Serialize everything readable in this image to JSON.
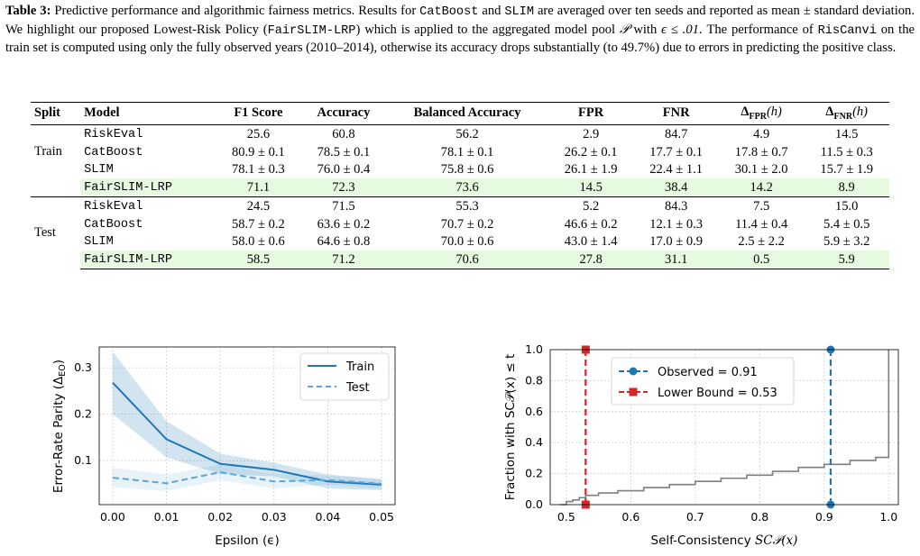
{
  "caption": {
    "label": "Table 3:",
    "p1": " Predictive performance and algorithmic fairness metrics. Results for ",
    "m1": "CatBoost",
    "p2": " and ",
    "m2": "SLIM",
    "p3": " are averaged over ten seeds and reported as mean ± standard deviation. We highlight our proposed Lowest-Risk Policy (",
    "m3": "FairSLIM-LRP",
    "p4": ") which is applied to the aggregated model pool ",
    "pool": "𝒫",
    "p5": " with ",
    "eps": "ϵ ≤ .01",
    "p6": ". The performance of ",
    "m4": "RisCanvi",
    "p7": " on the train set is computed using only the fully observed years (2010–2014), otherwise its accuracy drops substantially (to 49.7%) due to errors in predicting the positive class."
  },
  "table": {
    "headers": {
      "split": "Split",
      "model": "Model",
      "f1": "F1 Score",
      "acc": "Accuracy",
      "bacc": "Balanced Accuracy",
      "fpr": "FPR",
      "fnr": "FNR",
      "dfpr": "Δ",
      "dfpr_sub": "FPR",
      "dfpr_arg": "(h)",
      "dfnr": "Δ",
      "dfnr_sub": "FNR",
      "dfnr_arg": "(h)"
    },
    "train": {
      "split": "Train",
      "rows": [
        {
          "model": "RiskEval",
          "f1": "25.6",
          "acc": "60.8",
          "bacc": "56.2",
          "fpr": "2.9",
          "fnr": "84.7",
          "dfpr": "4.9",
          "dfnr": "14.5"
        },
        {
          "model": "CatBoost",
          "f1": "80.9 ± 0.1",
          "acc": "78.5 ± 0.1",
          "bacc": "78.1 ± 0.1",
          "fpr": "26.2 ± 0.1",
          "fnr": "17.7 ± 0.1",
          "dfpr": "17.8 ± 0.7",
          "dfnr": "11.5 ± 0.3"
        },
        {
          "model": "SLIM",
          "f1": "78.1 ± 0.3",
          "acc": "76.0 ± 0.4",
          "bacc": "75.8 ± 0.6",
          "fpr": "26.1 ± 1.9",
          "fnr": "22.4 ± 1.1",
          "dfpr": "30.1 ± 2.0",
          "dfnr": "15.7 ± 1.9"
        },
        {
          "model": "FairSLIM-LRP",
          "f1": "71.1",
          "acc": "72.3",
          "bacc": "73.6",
          "fpr": "14.5",
          "fnr": "38.4",
          "dfpr": "14.2",
          "dfnr": "8.9"
        }
      ]
    },
    "test": {
      "split": "Test",
      "rows": [
        {
          "model": "RiskEval",
          "f1": "24.5",
          "acc": "71.5",
          "bacc": "55.3",
          "fpr": "5.2",
          "fnr": "84.3",
          "dfpr": "7.5",
          "dfnr": "15.0"
        },
        {
          "model": "CatBoost",
          "f1": "58.7 ± 0.2",
          "acc": "63.6 ± 0.2",
          "bacc": "70.7 ± 0.2",
          "fpr": "46.6 ± 0.2",
          "fnr": "12.1 ± 0.3",
          "dfpr": "11.4 ± 0.4",
          "dfnr": "5.4 ± 0.5"
        },
        {
          "model": "SLIM",
          "f1": "58.0 ± 0.6",
          "acc": "64.6 ± 0.8",
          "bacc": "70.0 ± 0.6",
          "fpr": "43.0 ± 1.4",
          "fnr": "17.0 ± 0.9",
          "dfpr": "2.5 ± 2.2",
          "dfnr": "5.9 ± 3.2"
        },
        {
          "model": "FairSLIM-LRP",
          "f1": "58.5",
          "acc": "71.2",
          "bacc": "70.6",
          "fpr": "27.8",
          "fnr": "31.1",
          "dfpr": "0.5",
          "dfnr": "5.9"
        }
      ]
    },
    "highlight_color": "#e6fae0"
  },
  "chart_data": [
    {
      "type": "line",
      "xlabel": "Epsilon (ϵ)",
      "ylabel": "Error-Rate Parity (Δ",
      "ylabel_sub": "EO",
      "ylabel_close": ")",
      "x": [
        0.0,
        0.01,
        0.02,
        0.03,
        0.04,
        0.05
      ],
      "x_ticks": [
        "0.00",
        "0.01",
        "0.02",
        "0.03",
        "0.04",
        "0.05"
      ],
      "y_ticks": [
        "0.1",
        "0.2",
        "0.3"
      ],
      "xlim": [
        -0.0025,
        0.0525
      ],
      "ylim": [
        0.005,
        0.345
      ],
      "grid": true,
      "legend_position": "top-right",
      "series": [
        {
          "name": "Train",
          "style": "solid",
          "color": "#1f77b4",
          "values": [
            0.268,
            0.146,
            0.093,
            0.08,
            0.055,
            0.048
          ],
          "band_upper": [
            0.335,
            0.185,
            0.115,
            0.095,
            0.07,
            0.06
          ],
          "band_lower": [
            0.2,
            0.107,
            0.071,
            0.066,
            0.04,
            0.036
          ]
        },
        {
          "name": "Test",
          "style": "dashed",
          "color": "#5da5d8",
          "values": [
            0.063,
            0.051,
            0.075,
            0.055,
            0.058,
            0.05
          ],
          "band_upper": [
            0.085,
            0.07,
            0.092,
            0.07,
            0.068,
            0.06
          ],
          "band_lower": [
            0.043,
            0.034,
            0.058,
            0.04,
            0.048,
            0.04
          ]
        }
      ]
    },
    {
      "type": "line",
      "xlabel": "Self-Consistency ",
      "xlabel_math": "SC𝒫(x)",
      "ylabel": "Fraction with SC𝒫(x) ≤ t",
      "x_ticks": [
        "0.5",
        "0.6",
        "0.7",
        "0.8",
        "0.9",
        "1.0"
      ],
      "y_ticks": [
        "0.0",
        "0.2",
        "0.4",
        "0.6",
        "0.8",
        "1.0"
      ],
      "xlim": [
        0.475,
        1.015
      ],
      "ylim": [
        0.0,
        1.0
      ],
      "grid": true,
      "legend_position": "top-left",
      "series": [
        {
          "name": "Observed = 0.91",
          "style": "dashed-vertical",
          "color": "#1f77b4",
          "x_value": 0.91
        },
        {
          "name": "Lower Bound = 0.53",
          "style": "dashed-vertical",
          "color": "#d62728",
          "x_value": 0.53
        },
        {
          "name": "",
          "style": "step",
          "color": "#7f7f7f",
          "x": [
            0.49,
            0.5,
            0.51,
            0.52,
            0.53,
            0.55,
            0.58,
            0.62,
            0.66,
            0.7,
            0.74,
            0.78,
            0.82,
            0.86,
            0.9,
            0.94,
            0.98,
            1.0,
            1.0
          ],
          "y": [
            0.0,
            0.02,
            0.03,
            0.045,
            0.06,
            0.075,
            0.09,
            0.11,
            0.13,
            0.15,
            0.17,
            0.19,
            0.215,
            0.24,
            0.26,
            0.285,
            0.305,
            0.31,
            1.0
          ]
        }
      ]
    }
  ]
}
